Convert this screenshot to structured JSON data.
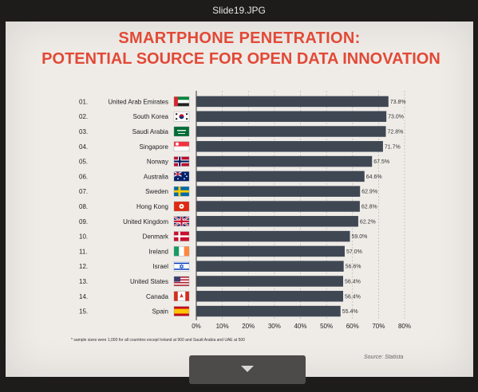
{
  "viewer": {
    "title": "Slide19.JPG"
  },
  "slide": {
    "title_line1": "SMARTPHONE PENETRATION:",
    "title_line2": "POTENTIAL SOURCE FOR OPEN DATA INNOVATION",
    "footnote": "* sample sizes were 1,000 for all countries except Ireland at 900 and Saudi Arabia and UAE at 500",
    "source": "Source: Statista"
  },
  "chart_data": {
    "type": "bar",
    "orientation": "horizontal",
    "ranks": [
      "01.",
      "02.",
      "03.",
      "04.",
      "05.",
      "06.",
      "07.",
      "08.",
      "09.",
      "10.",
      "11.",
      "12.",
      "13.",
      "14.",
      "15."
    ],
    "categories": [
      "United Arab Emirates",
      "South Korea",
      "Saudi Arabia",
      "Singapore",
      "Norway",
      "Australia",
      "Sweden",
      "Hong Kong",
      "United Kingdom",
      "Denmark",
      "Ireland",
      "Israel",
      "United States",
      "Canada",
      "Spain"
    ],
    "values": [
      73.8,
      73.0,
      72.8,
      71.7,
      67.5,
      64.6,
      62.9,
      62.8,
      62.2,
      59.0,
      57.0,
      56.6,
      56.4,
      56.4,
      55.4
    ],
    "value_labels": [
      "73.8%",
      "73.0%",
      "72.8%",
      "71.7%",
      "67.5%",
      "64.6%",
      "62.9%",
      "62.8%",
      "62.2%",
      "59.0%",
      "57.0%",
      "56.6%",
      "56.4%",
      "56.4%",
      "55.4%"
    ],
    "flags": [
      "uae-flag-icon",
      "south-korea-flag-icon",
      "saudi-arabia-flag-icon",
      "singapore-flag-icon",
      "norway-flag-icon",
      "australia-flag-icon",
      "sweden-flag-icon",
      "hong-kong-flag-icon",
      "united-kingdom-flag-icon",
      "denmark-flag-icon",
      "ireland-flag-icon",
      "israel-flag-icon",
      "united-states-flag-icon",
      "canada-flag-icon",
      "spain-flag-icon"
    ],
    "xticks": [
      "0%",
      "10%",
      "20%",
      "30%",
      "40%",
      "50%",
      "60%",
      "70%",
      "80%"
    ],
    "xlim": [
      0,
      80
    ],
    "grid": true,
    "bar_color": "#3f4753",
    "title_color": "#e24936"
  },
  "nav": {
    "icon": "chevron-down-icon"
  }
}
